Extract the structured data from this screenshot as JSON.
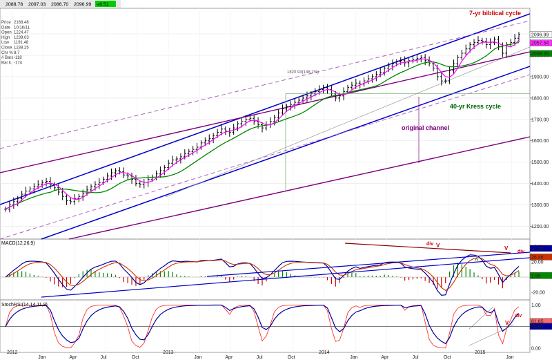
{
  "toolbar": {
    "readouts": [
      "2088.78",
      "2097.03",
      "2086.70",
      "2096.99",
      "+8.51"
    ],
    "change_color": "#00cc00"
  },
  "info_panel": {
    "lines": [
      {
        "label": "Price",
        "value": "2168.48"
      },
      {
        "label": "Date",
        "value": "10/16/11"
      },
      {
        "label": "Open",
        "value": "1224.47"
      },
      {
        "label": "High",
        "value": "1239.03"
      },
      {
        "label": "Low",
        "value": "1191.48"
      },
      {
        "label": "Close",
        "value": "1238.25"
      },
      {
        "label": "Chr %",
        "value": "8.7"
      },
      {
        "label": "# Bars",
        "value": "-118"
      },
      {
        "label": "Bar k.",
        "value": "-174"
      }
    ]
  },
  "annotations": {
    "biblical_cycle": "7-yr biblical cycle",
    "kress_cycle": "40-yr Kress cycle",
    "original_channel": "original channel",
    "fib_label": "1820.93(138.2%)",
    "macd_div_1": "div",
    "macd_v_1": "V",
    "macd_v_2": "V",
    "macd_div_2": "div",
    "macd_caret": "^",
    "stoch_div": "div",
    "stoch_v": "V"
  },
  "panels": {
    "macd_title": "MACD(12,26,9)",
    "stoch_title": "StochRSI(14,14,11,9)"
  },
  "price_badges": [
    {
      "label": "2096.99",
      "value": 2096.99,
      "bg": "#ffffff",
      "fg": "#000000"
    },
    {
      "label": "2057.54",
      "value": 2057.54,
      "bg": "#ff33ff",
      "fg": "#ffffff"
    },
    {
      "label": "2008.35",
      "value": 2008.35,
      "bg": "#008800",
      "fg": "#ffffff"
    }
  ],
  "macd_badges": [
    {
      "label": "37.75",
      "value": 37.75,
      "bg": "#000099",
      "fg": "#ffffff"
    },
    {
      "label": "26.46",
      "value": 26.46,
      "bg": "#cc3300",
      "fg": "#ffffff"
    },
    {
      "label": "1.96",
      "value": 1.96,
      "bg": "#008800",
      "fg": "#ffffff"
    }
  ],
  "stoch_badges": [
    {
      "label": "61.85",
      "value": 0.6185,
      "bg": "#ff6666",
      "fg": "#ffffff"
    },
    {
      "label": "50.63",
      "value": 0.5063,
      "bg": "#000099",
      "fg": "#ffffff"
    }
  ],
  "colors": {
    "channel_blue": "#0000cc",
    "channel_purple": "#800080",
    "dashed_purple": "#b060c0",
    "ma_fast": "#ff00ff",
    "ma_slow": "#008800",
    "macd_line": "#000099",
    "signal_line": "#cc3300",
    "hist_pos": "#008800",
    "hist_neg": "#cc0000",
    "stoch_k": "#ff3333",
    "stoch_d": "#000099",
    "anno_red": "#cc0000",
    "anno_green": "#006600",
    "anno_purple": "#800080"
  },
  "chart_data": [
    {
      "type": "line",
      "name": "price",
      "x_labels": [
        "2012",
        "Jan",
        "Apr",
        "Jul",
        "Oct",
        "2013",
        "Jan",
        "Apr",
        "Jul",
        "Oct",
        "2014",
        "Jan",
        "Apr",
        "Jul",
        "Oct",
        "2015",
        "Jan"
      ],
      "y_ticks": [
        1200,
        1300,
        1400,
        1500,
        1600,
        1700,
        1800,
        1900,
        2000,
        2100
      ],
      "ylim": [
        1140,
        2220
      ],
      "log_scale": false,
      "close_weekly": [
        1280,
        1300,
        1315,
        1330,
        1350,
        1365,
        1375,
        1385,
        1395,
        1405,
        1410,
        1395,
        1380,
        1360,
        1340,
        1320,
        1315,
        1330,
        1340,
        1355,
        1370,
        1385,
        1395,
        1405,
        1420,
        1435,
        1450,
        1460,
        1455,
        1440,
        1435,
        1420,
        1400,
        1395,
        1405,
        1420,
        1430,
        1445,
        1460,
        1475,
        1495,
        1510,
        1515,
        1525,
        1540,
        1550,
        1560,
        1570,
        1590,
        1600,
        1610,
        1625,
        1640,
        1655,
        1645,
        1640,
        1660,
        1680,
        1690,
        1700,
        1705,
        1690,
        1675,
        1660,
        1675,
        1690,
        1710,
        1730,
        1750,
        1760,
        1770,
        1780,
        1790,
        1800,
        1810,
        1820,
        1830,
        1840,
        1850,
        1840,
        1820,
        1800,
        1810,
        1830,
        1850,
        1860,
        1870,
        1865,
        1880,
        1890,
        1900,
        1910,
        1920,
        1940,
        1950,
        1960,
        1970,
        1975,
        1965,
        1975,
        1980,
        1985,
        1990,
        1975,
        1960,
        1940,
        1900,
        1880,
        1880,
        1930,
        1960,
        1990,
        2010,
        2030,
        2050,
        2060,
        2070,
        2065,
        2050,
        2060,
        2075,
        2040,
        2010,
        2050,
        2060,
        2080,
        2097
      ]
    },
    {
      "type": "line",
      "name": "macd",
      "y_ticks": [
        -20,
        0,
        20,
        40
      ],
      "ylim": [
        -30,
        50
      ]
    },
    {
      "type": "line",
      "name": "stoch_rsi",
      "y_ticks": [
        0,
        0.5,
        1
      ],
      "ylim": [
        -0.1,
        1.12
      ]
    }
  ]
}
